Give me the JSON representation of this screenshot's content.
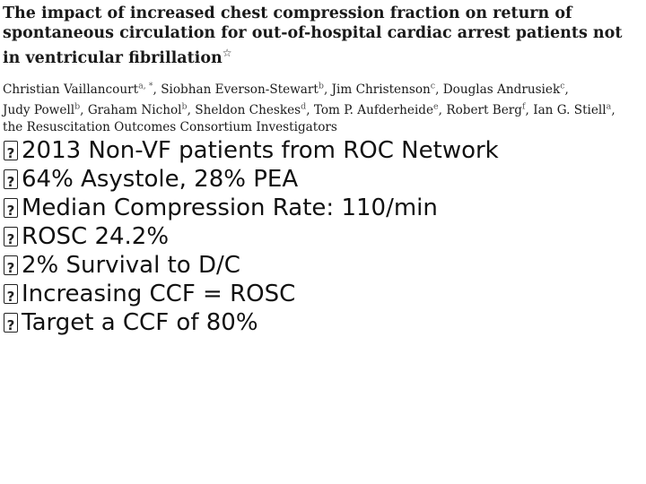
{
  "header": {
    "title": "The impact of increased chest compression fraction on return of spontaneous circulation for out-of-hospital cardiac arrest patients not in ventricular fibrillation",
    "title_mark": "☆"
  },
  "authors": [
    {
      "name": "Christian Vaillancourt",
      "sup": "a, *",
      "sep": ", "
    },
    {
      "name": "Siobhan Everson-Stewart",
      "sup": "b",
      "sep": ", "
    },
    {
      "name": "Jim Christenson",
      "sup": "c",
      "sep": ", "
    },
    {
      "name": "Douglas Andrusiek",
      "sup": "c",
      "sep": ", "
    },
    {
      "name": "Judy Powell",
      "sup": "b",
      "sep": ", "
    },
    {
      "name": "Graham Nichol",
      "sup": "b",
      "sep": ", "
    },
    {
      "name": "Sheldon Cheskes",
      "sup": "d",
      "sep": ", "
    },
    {
      "name": "Tom P. Aufderheide",
      "sup": "e",
      "sep": ", "
    },
    {
      "name": "Robert Berg",
      "sup": "f",
      "sep": ", "
    },
    {
      "name": "Ian G. Stiell",
      "sup": "a",
      "sep": ", "
    },
    {
      "name": "the Resuscitation Outcomes Consortium Investigators",
      "sup": "",
      "sep": ""
    }
  ],
  "bullets": [
    "2013 Non-VF patients from ROC Network",
    "64% Asystole, 28% PEA",
    "Median Compression Rate: 110/min",
    "ROSC 24.2%",
    "2% Survival to D/C",
    "Increasing CCF = ROSC",
    "Target a CCF of 80%"
  ]
}
